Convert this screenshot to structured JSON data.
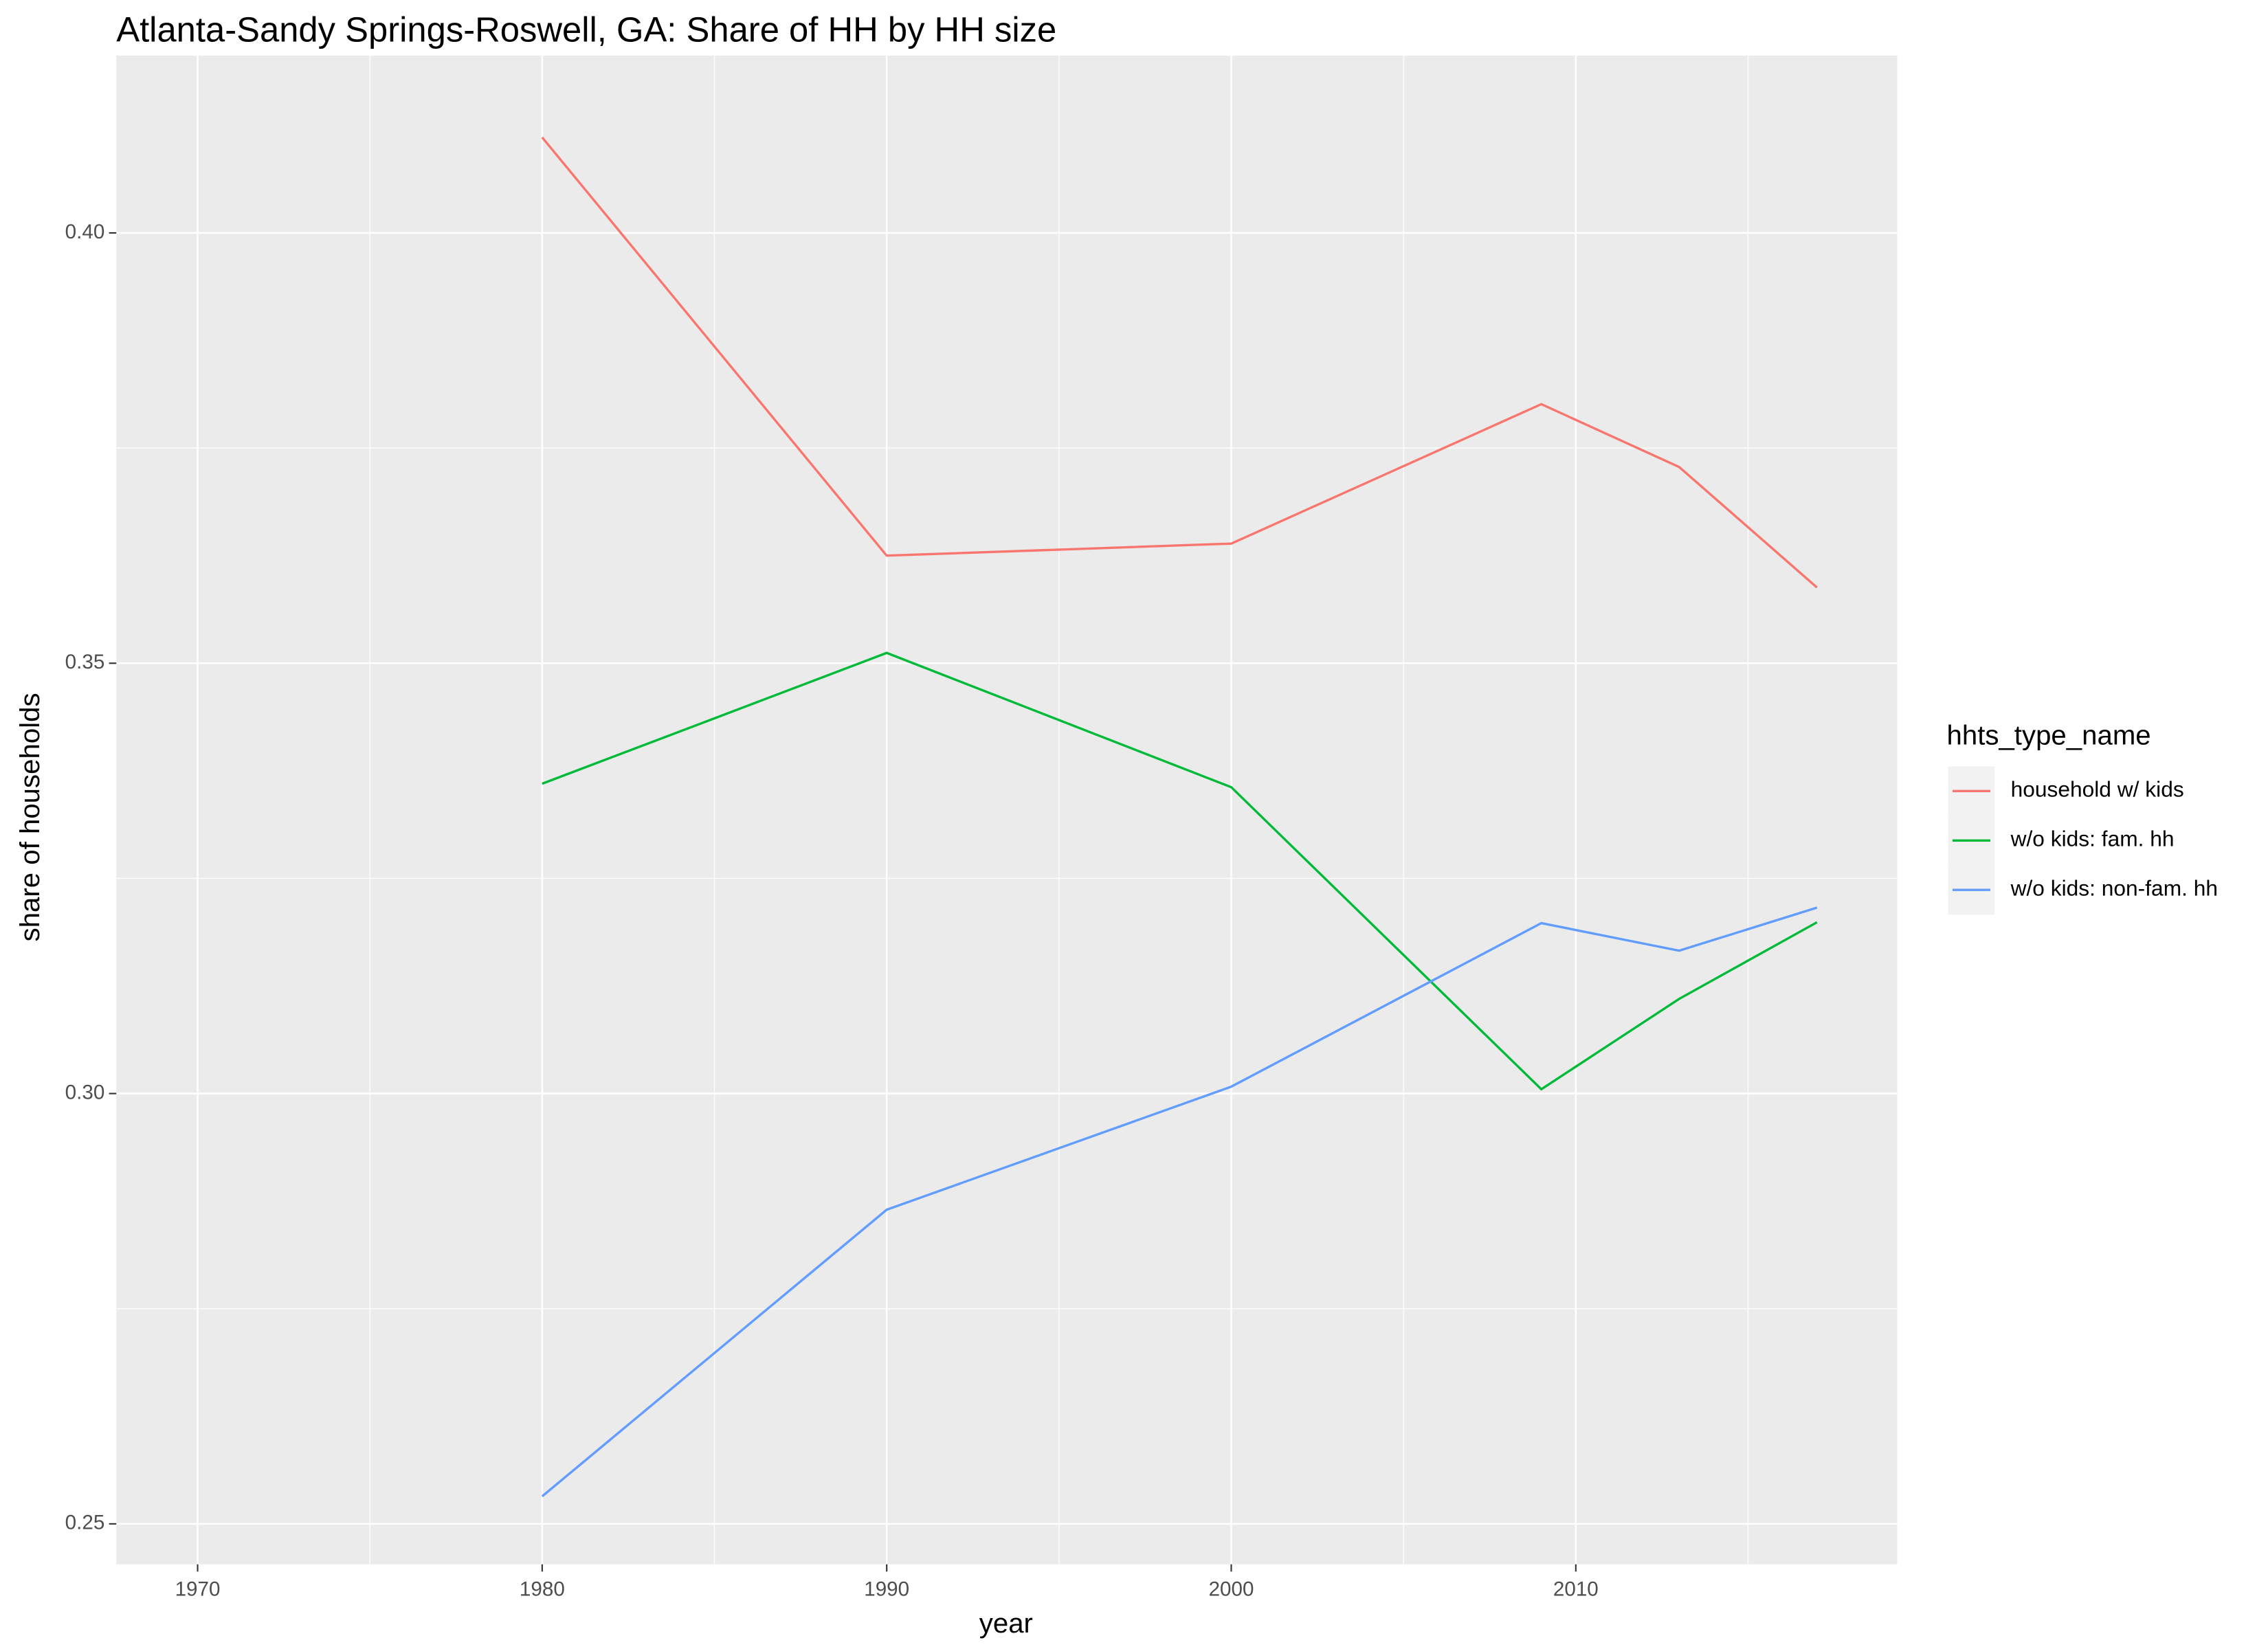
{
  "chart_data": {
    "type": "line",
    "title": "Atlanta-Sandy Springs-Roswell, GA: Share of HH by HH size",
    "x_label": "year",
    "y_label": "share of households",
    "x": [
      1980,
      1990,
      2000,
      2009,
      2013,
      2017
    ],
    "series": [
      {
        "name": "household w/ kids",
        "color": "#f8766d",
        "values": [
          0.4111,
          0.3625,
          0.3639,
          0.3801,
          0.3728,
          0.3588
        ]
      },
      {
        "name": "w/o kids: fam. hh",
        "color": "#00ba38",
        "values": [
          0.336,
          0.3512,
          0.3356,
          0.3005,
          0.311,
          0.3199
        ]
      },
      {
        "name": "w/o kids: non-fam. hh",
        "color": "#619cff",
        "values": [
          0.2532,
          0.2865,
          0.3008,
          0.3198,
          0.3166,
          0.3216
        ]
      }
    ],
    "legend_title": "hhts_type_name",
    "legend": "right",
    "xlim": [
      1967.64,
      2019.33
    ],
    "xticks": [
      1970,
      1980,
      1990,
      2000,
      2010
    ],
    "ylim": [
      0.2453,
      0.4206
    ],
    "yticks": [
      {
        "value": 0.25,
        "label": "0.25"
      },
      {
        "value": 0.3,
        "label": "0.30"
      },
      {
        "value": 0.35,
        "label": "0.35"
      },
      {
        "value": 0.4,
        "label": "0.40"
      }
    ],
    "grid": true
  }
}
